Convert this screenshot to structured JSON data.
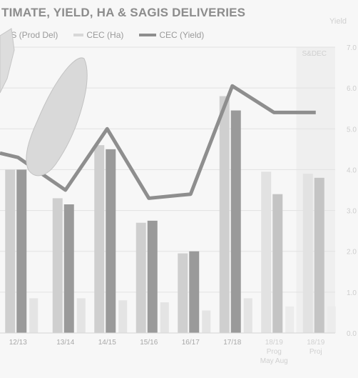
{
  "chart_data": {
    "type": "bar",
    "title": "TIMATE, YIELD, HA & SAGIS DELIVERIES",
    "categories": [
      "12/13",
      "13/14",
      "14/15",
      "15/16",
      "16/17",
      "17/18",
      "18/19\nProg\nMay Aug",
      "18/19\nProj"
    ],
    "series": [
      {
        "name": "",
        "kind": "bar",
        "color": "#cfcfcf",
        "values": [
          4.0,
          3.3,
          4.6,
          2.7,
          1.95,
          5.8,
          3.95,
          3.9
        ]
      },
      {
        "name": "IS (Prod Del)",
        "kind": "bar",
        "color": "#9a9a9a",
        "values": [
          4.0,
          3.15,
          4.5,
          2.75,
          2.0,
          5.45,
          3.4,
          3.8
        ]
      },
      {
        "name": "CEC (Ha)",
        "kind": "bar",
        "color": "#e4e4e4",
        "values": [
          0.85,
          0.85,
          0.8,
          0.75,
          0.55,
          0.85,
          0.65,
          0.65
        ]
      },
      {
        "name": "CEC (Yield)",
        "kind": "line",
        "color": "#8e8e8e",
        "values": [
          4.3,
          3.5,
          5.0,
          3.3,
          3.4,
          6.05,
          5.4,
          5.4
        ]
      }
    ],
    "y_right_label": "Yield",
    "y_right_ticks": [
      "0.0",
      "1.0",
      "2.0",
      "3.0",
      "4.0",
      "5.0",
      "6.0",
      "7.0"
    ],
    "ylim": [
      0,
      7
    ],
    "region_label": "S&DEC",
    "grid": true,
    "legend_position": "top"
  }
}
